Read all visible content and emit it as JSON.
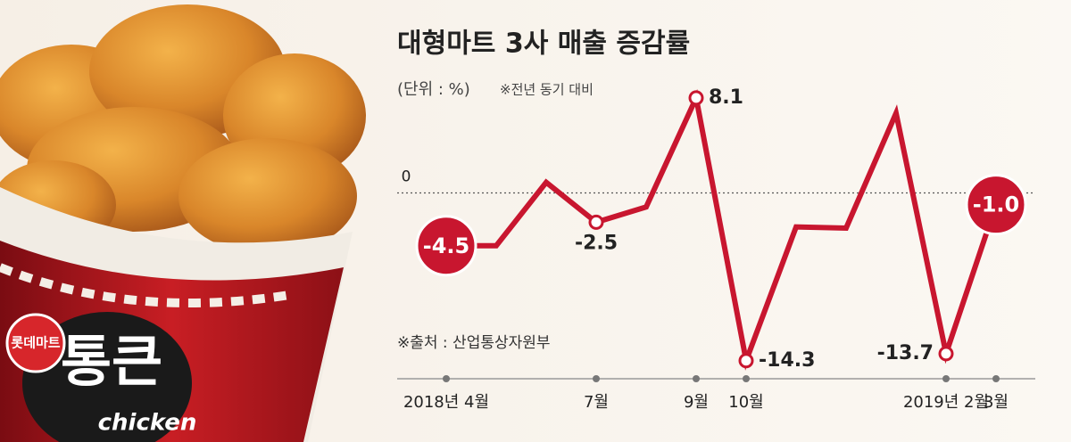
{
  "photo": {
    "badge": "롯데마트",
    "brand": "통큰",
    "word": "chicken"
  },
  "chart_data": {
    "type": "line",
    "title": "대형마트 3사 매출 증감률",
    "unit": "(단위 : %)",
    "note": "※전년 동기 대비",
    "source": "※출처 : 산업통상자원부",
    "categories": [
      "2018년 4월",
      null,
      null,
      "7월",
      null,
      "9월",
      "10월",
      null,
      null,
      null,
      "2019년 2월",
      "3월"
    ],
    "series": [
      {
        "color": "#c8162f",
        "values": [
          -4.5,
          -4.5,
          0.9,
          -2.5,
          -1.2,
          8.1,
          -14.3,
          -2.9,
          -3.0,
          6.8,
          -13.7,
          -1.0
        ],
        "value_labels": [
          "-4.5",
          null,
          null,
          "-2.5",
          null,
          "8.1",
          "-14.3",
          null,
          null,
          null,
          "-13.7",
          "-1.0"
        ]
      }
    ],
    "ylim": [
      -15,
      9
    ],
    "yticks": [
      0
    ],
    "grid": true
  }
}
